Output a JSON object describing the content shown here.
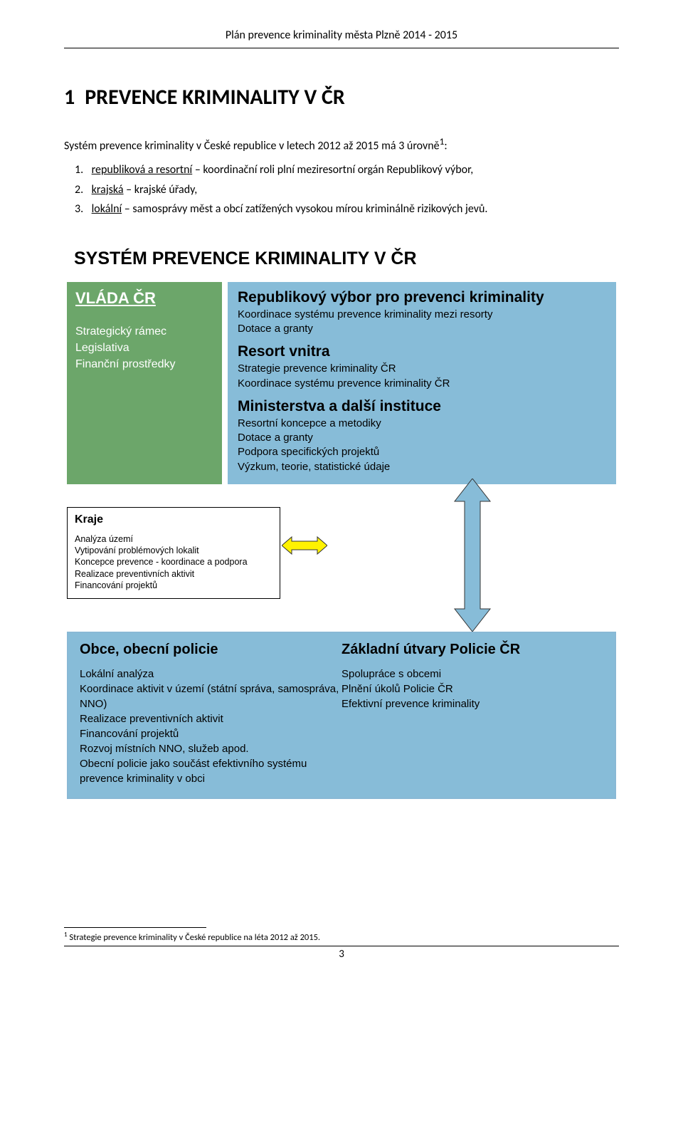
{
  "header": "Plán prevence kriminality města Plzně 2014 - 2015",
  "section": {
    "num": "1",
    "title": "PREVENCE KRIMINALITY V ČR"
  },
  "para": "Systém prevence kriminality v České republice v letech 2012 až 2015 má 3 úrovně",
  "sup": "1",
  "colon": ":",
  "list": [
    {
      "n": "1.",
      "u": "republiková a resortní",
      "rest": " – koordinační roli plní meziresortní orgán Republikový výbor,"
    },
    {
      "n": "2.",
      "u": "krajská",
      "rest": " – krajské úřady,"
    },
    {
      "n": "3.",
      "u": "lokální",
      "rest": " – samosprávy měst a obcí zatížených vysokou mírou kriminálně rizikových jevů."
    }
  ],
  "diagram": {
    "title": "SYSTÉM PREVENCE KRIMINALITY V ČR",
    "colors": {
      "green": "#6ca66a",
      "blue": "#87bcd8",
      "blueBorder": "#89b8d5",
      "yellow": "#fff200"
    },
    "green_box": {
      "title": "VLÁDA ČR",
      "lines": [
        "Strategický rámec",
        "Legislativa",
        "Finanční prostředky"
      ]
    },
    "blue_box": {
      "blocks": [
        {
          "title": "Republikový výbor pro prevenci kriminality",
          "lines": [
            "Koordinace systému prevence kriminality mezi resorty",
            "Dotace a granty"
          ]
        },
        {
          "title": "Resort vnitra",
          "lines": [
            "Strategie prevence kriminality ČR",
            "Koordinace systému prevence kriminality ČR"
          ]
        },
        {
          "title": "Ministerstva a další instituce",
          "lines": [
            "Resortní koncepce a metodiky",
            "Dotace a granty",
            "Podpora specifických projektů",
            "Výzkum, teorie, statistické údaje"
          ]
        }
      ]
    },
    "kraje": {
      "title": "Kraje",
      "lines": [
        "Analýza území",
        "Vytipování problémových lokalit",
        "Koncepce prevence - koordinace a podpora",
        "Realizace preventivních aktivit",
        "Financování projektů"
      ]
    },
    "bottom": {
      "left": {
        "title": "Obce, obecní policie",
        "lines": [
          "Lokální analýza",
          "Koordinace aktivit v území (státní správa, samospráva, NNO)",
          "Realizace preventivních aktivit",
          "Financování projektů",
          "Rozvoj místních NNO, služeb apod.",
          "Obecní policie jako součást efektivního systému prevence kriminality v obci"
        ]
      },
      "right": {
        "title": "Základní útvary Policie ČR",
        "lines": [
          "Spolupráce s obcemi",
          "Plnění úkolů Policie ČR",
          "Efektivní prevence kriminality"
        ]
      }
    }
  },
  "footnote": "Strategie prevence kriminality v České republice na léta 2012 až 2015.",
  "footnote_num": "1",
  "page_num": "3"
}
